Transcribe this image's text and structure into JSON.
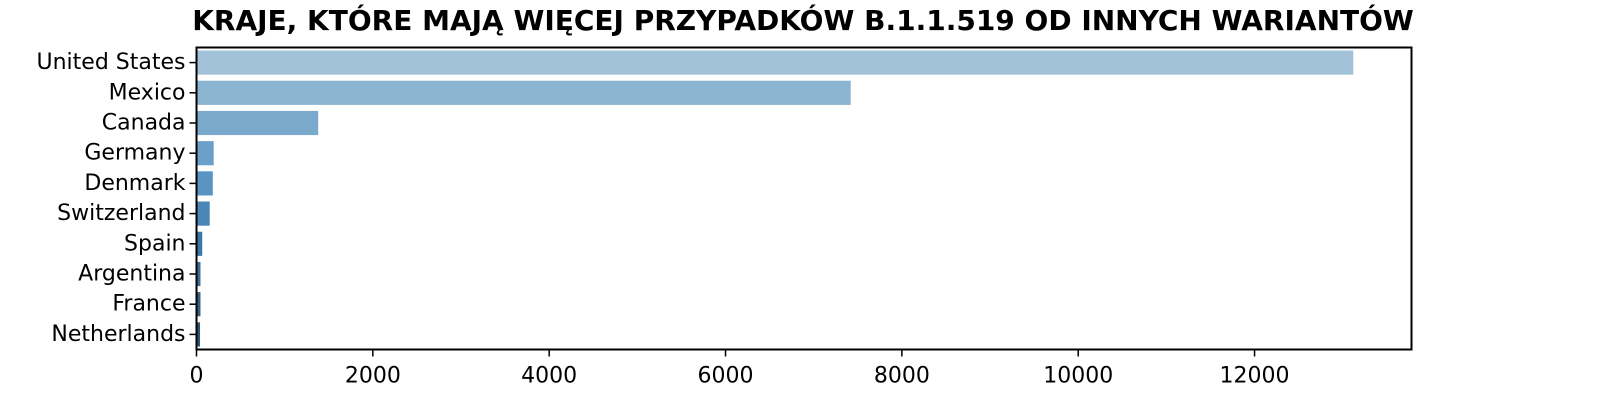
{
  "chart_data": {
    "type": "bar",
    "orientation": "horizontal",
    "title": "KRAJE, KTÓRE MAJĄ WIĘCEJ PRZYPADKÓW B.1.1.519 OD INNYCH WARIANTÓW",
    "xlabel": "",
    "ylabel": "",
    "categories": [
      "United States",
      "Mexico",
      "Canada",
      "Germany",
      "Denmark",
      "Switzerland",
      "Spain",
      "Argentina",
      "France",
      "Netherlands"
    ],
    "values": [
      13120,
      7420,
      1380,
      195,
      185,
      150,
      65,
      45,
      45,
      40
    ],
    "colors": [
      "#a1c2d9",
      "#8bb4d1",
      "#7aa9cc",
      "#6aa0c9",
      "#5a94c2",
      "#4a86b7",
      "#3f77a3",
      "#3a6c94",
      "#345f82",
      "#2f5373"
    ],
    "xlim": [
      0,
      13780
    ],
    "xticks": [
      0,
      2000,
      4000,
      6000,
      8000,
      10000,
      12000
    ],
    "xtick_labels": [
      "0",
      "2000",
      "4000",
      "6000",
      "8000",
      "10000",
      "12000"
    ],
    "grid": false,
    "legend": false
  }
}
